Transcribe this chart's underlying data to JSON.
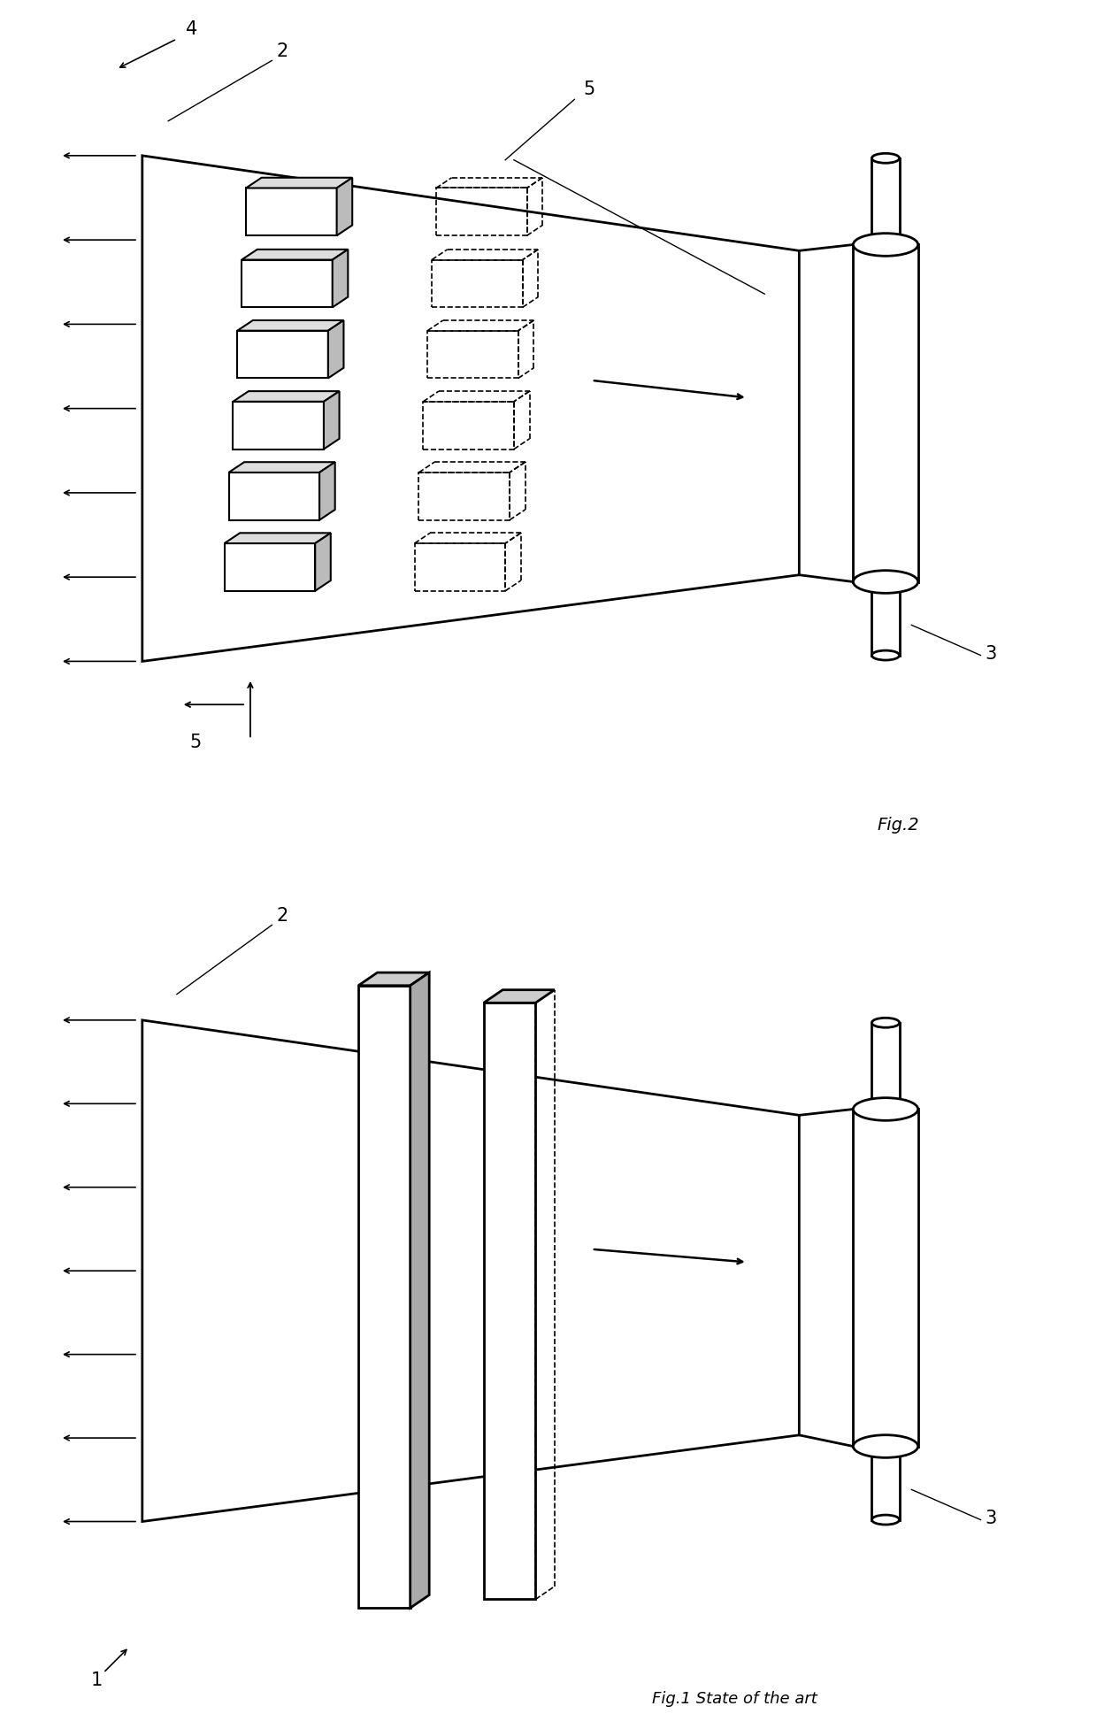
{
  "fig_width": 12.4,
  "fig_height": 19.54,
  "bg_color": "#ffffff",
  "fig1_label": "Fig.1",
  "fig1_sublabel": "State of the art",
  "fig2_label": "Fig.2",
  "label1": "1",
  "label2": "2",
  "label3": "3",
  "label4": "4",
  "label5": "5"
}
